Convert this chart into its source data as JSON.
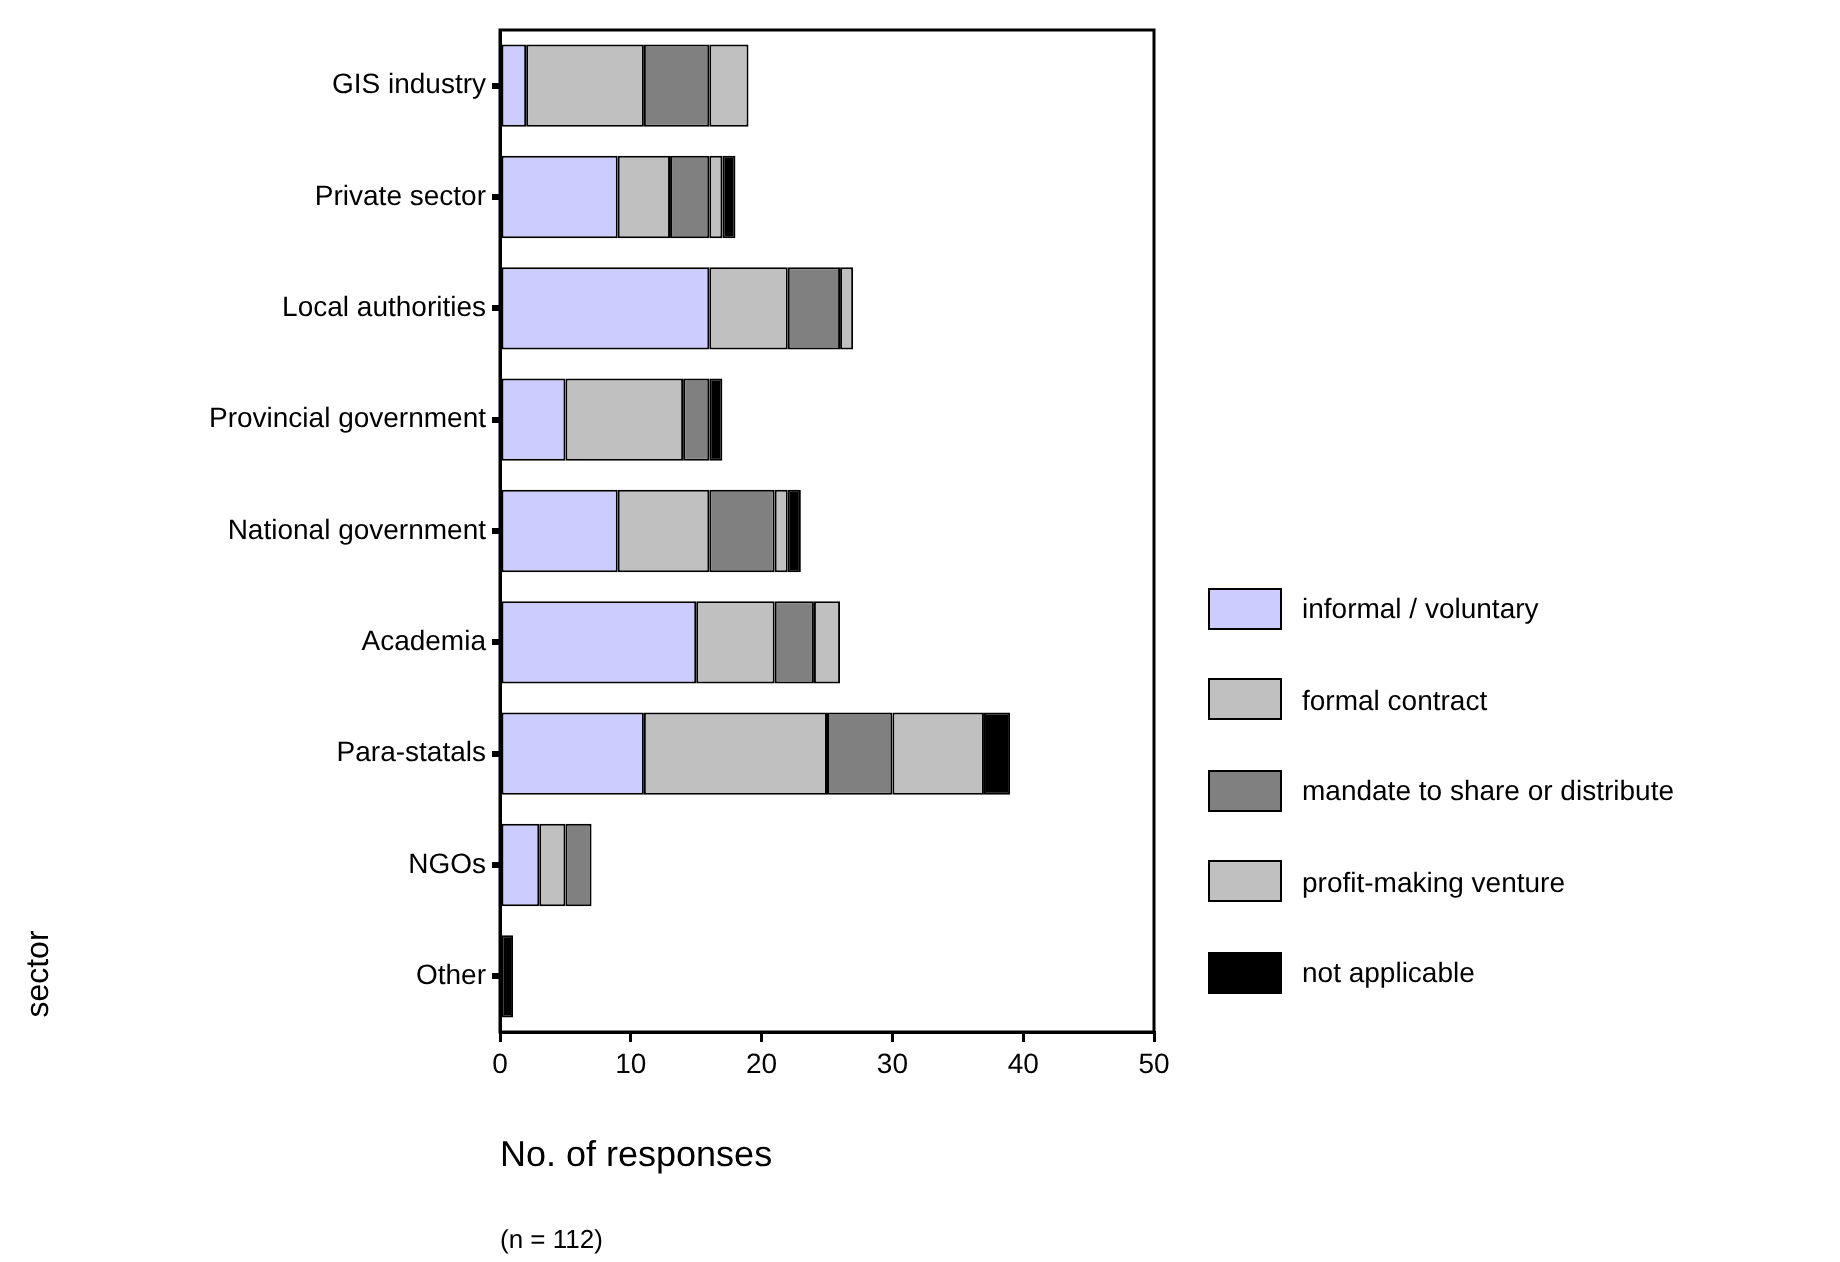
{
  "chart_data": {
    "type": "bar",
    "orientation": "horizontal",
    "stacked": true,
    "categories": [
      "GIS industry",
      "Private sector",
      "Local authorities",
      "Provincial government",
      "National government",
      "Academia",
      "Para-statals",
      "NGOs",
      "Other"
    ],
    "series": [
      {
        "name": "informal / voluntary",
        "color": "#ccccff",
        "values": [
          2,
          9,
          16,
          5,
          9,
          15,
          11,
          3,
          0
        ]
      },
      {
        "name": "formal contract",
        "color": "#c0c0c0",
        "values": [
          9,
          4,
          6,
          9,
          7,
          6,
          14,
          2,
          0
        ]
      },
      {
        "name": "mandate to share or distribute",
        "color": "#808080",
        "values": [
          5,
          3,
          4,
          2,
          5,
          3,
          5,
          2,
          0
        ]
      },
      {
        "name": "profit-making venture",
        "color": "#c0c0c0",
        "values": [
          3,
          1,
          1,
          0,
          1,
          2,
          7,
          0,
          0
        ]
      },
      {
        "name": "not applicable",
        "color": "#000000",
        "values": [
          0,
          1,
          0,
          1,
          1,
          0,
          2,
          0,
          1
        ]
      }
    ],
    "xlim": [
      0,
      50
    ],
    "xticks": [
      0,
      10,
      20,
      30,
      40,
      50
    ],
    "xlabel": "No. of responses",
    "ylabel": "sector",
    "annotations": [
      "(n = 112)"
    ],
    "grid": false,
    "legend": "right"
  }
}
